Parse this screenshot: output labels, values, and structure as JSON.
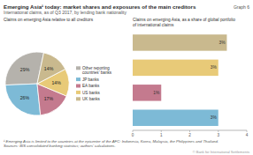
{
  "title": "Emerging Asia¹ today: market shares and exposures of the main creditors",
  "subtitle": "International claims, as of Q3 2017, by lending bank nationality",
  "annotations": [
    "Graph 6",
    "¹ Emerging Asia is limited to the countries at the epicentre of the AFC: Indonesia, Korea, Malaysia, the Philippines and Thailand.",
    "Sources: BIS consolidated banking statistics; authors' calculations.",
    "© Bank for International Settlements"
  ],
  "chart_data": [
    {
      "type": "pie",
      "title": "Claims on emerging Asia relative to all creditors",
      "categories": [
        "Other reporting\ncountries' banks",
        "JP banks",
        "EA banks",
        "US banks",
        "UK banks"
      ],
      "values": [
        29,
        26,
        17,
        14,
        14
      ],
      "value_labels": [
        "29%",
        "26%",
        "17%",
        "14%",
        "14%"
      ],
      "colors": [
        "#b5b2ac",
        "#7dbad6",
        "#c47a8e",
        "#e8ca78",
        "#c9b98e"
      ],
      "data_labels": true,
      "legend": "right"
    },
    {
      "type": "bar",
      "orientation": "horizontal",
      "title": "Claims on emerging Asia, as a share of global portfolio\nof international claims",
      "categories": [
        null,
        null,
        null,
        null
      ],
      "values": [
        3.0,
        1.0,
        3.0,
        3.3
      ],
      "value_labels": [
        "3%",
        "1%",
        "3%",
        "3%"
      ],
      "colors": [
        "#7dbad6",
        "#c47a8e",
        "#e8ca78",
        "#c9b98e"
      ],
      "xlim": [
        0,
        4
      ],
      "xticks": [
        0,
        1,
        2,
        3,
        4
      ],
      "data_labels": true,
      "tick_labels": "x",
      "grid": false
    }
  ]
}
